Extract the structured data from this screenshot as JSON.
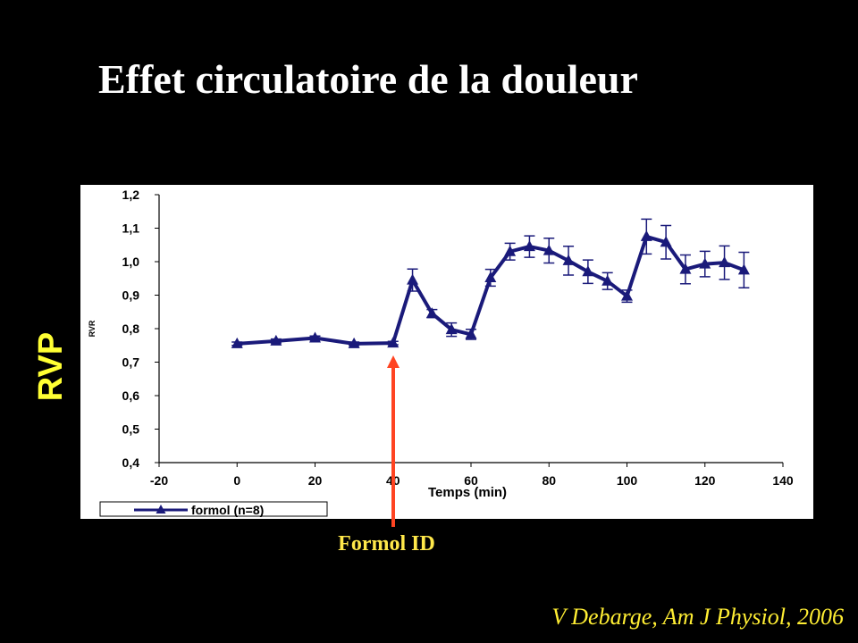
{
  "slide": {
    "title": "Effet circulatoire de la douleur",
    "side_label": "RVP",
    "annotation": "Formol ID",
    "citation": "V Debarge, Am J Physiol, 2006"
  },
  "colors": {
    "background": "#000000",
    "title": "#ffffff",
    "side_label": "#ffff33",
    "annotation": "#ffe84a",
    "arrow": "#ff4422",
    "series": "#1a1a7a",
    "chart_background": "#ffffff"
  },
  "chart_data": {
    "type": "line",
    "title": "",
    "xlabel": "Temps (min)",
    "ylabel": "RVR",
    "xlim": [
      -20,
      140
    ],
    "ylim": [
      0.4,
      1.2
    ],
    "x_ticks": [
      "-20",
      "0",
      "20",
      "40",
      "60",
      "80",
      "100",
      "120",
      "140"
    ],
    "y_ticks": [
      "0,4",
      "0,5",
      "0,6",
      "0,7",
      "0,8",
      "0,9",
      "1,0",
      "1,1",
      "1,2"
    ],
    "grid": false,
    "legend_position": "bottom-left",
    "series": [
      {
        "name": "formol (n=8)",
        "marker": "triangle",
        "x": [
          0,
          10,
          20,
          30,
          40,
          45,
          50,
          55,
          60,
          65,
          70,
          75,
          80,
          85,
          90,
          95,
          100,
          105,
          110,
          115,
          120,
          125,
          130
        ],
        "y": [
          0.755,
          0.763,
          0.772,
          0.755,
          0.757,
          0.945,
          0.845,
          0.797,
          0.783,
          0.952,
          1.03,
          1.045,
          1.033,
          1.003,
          0.97,
          0.942,
          0.897,
          1.075,
          1.058,
          0.977,
          0.993,
          0.997,
          0.975
        ],
        "error": [
          0.005,
          0.006,
          0.006,
          0.005,
          0.005,
          0.033,
          0.012,
          0.02,
          0.015,
          0.025,
          0.025,
          0.032,
          0.037,
          0.043,
          0.035,
          0.025,
          0.018,
          0.052,
          0.05,
          0.043,
          0.038,
          0.05,
          0.053
        ]
      }
    ]
  }
}
